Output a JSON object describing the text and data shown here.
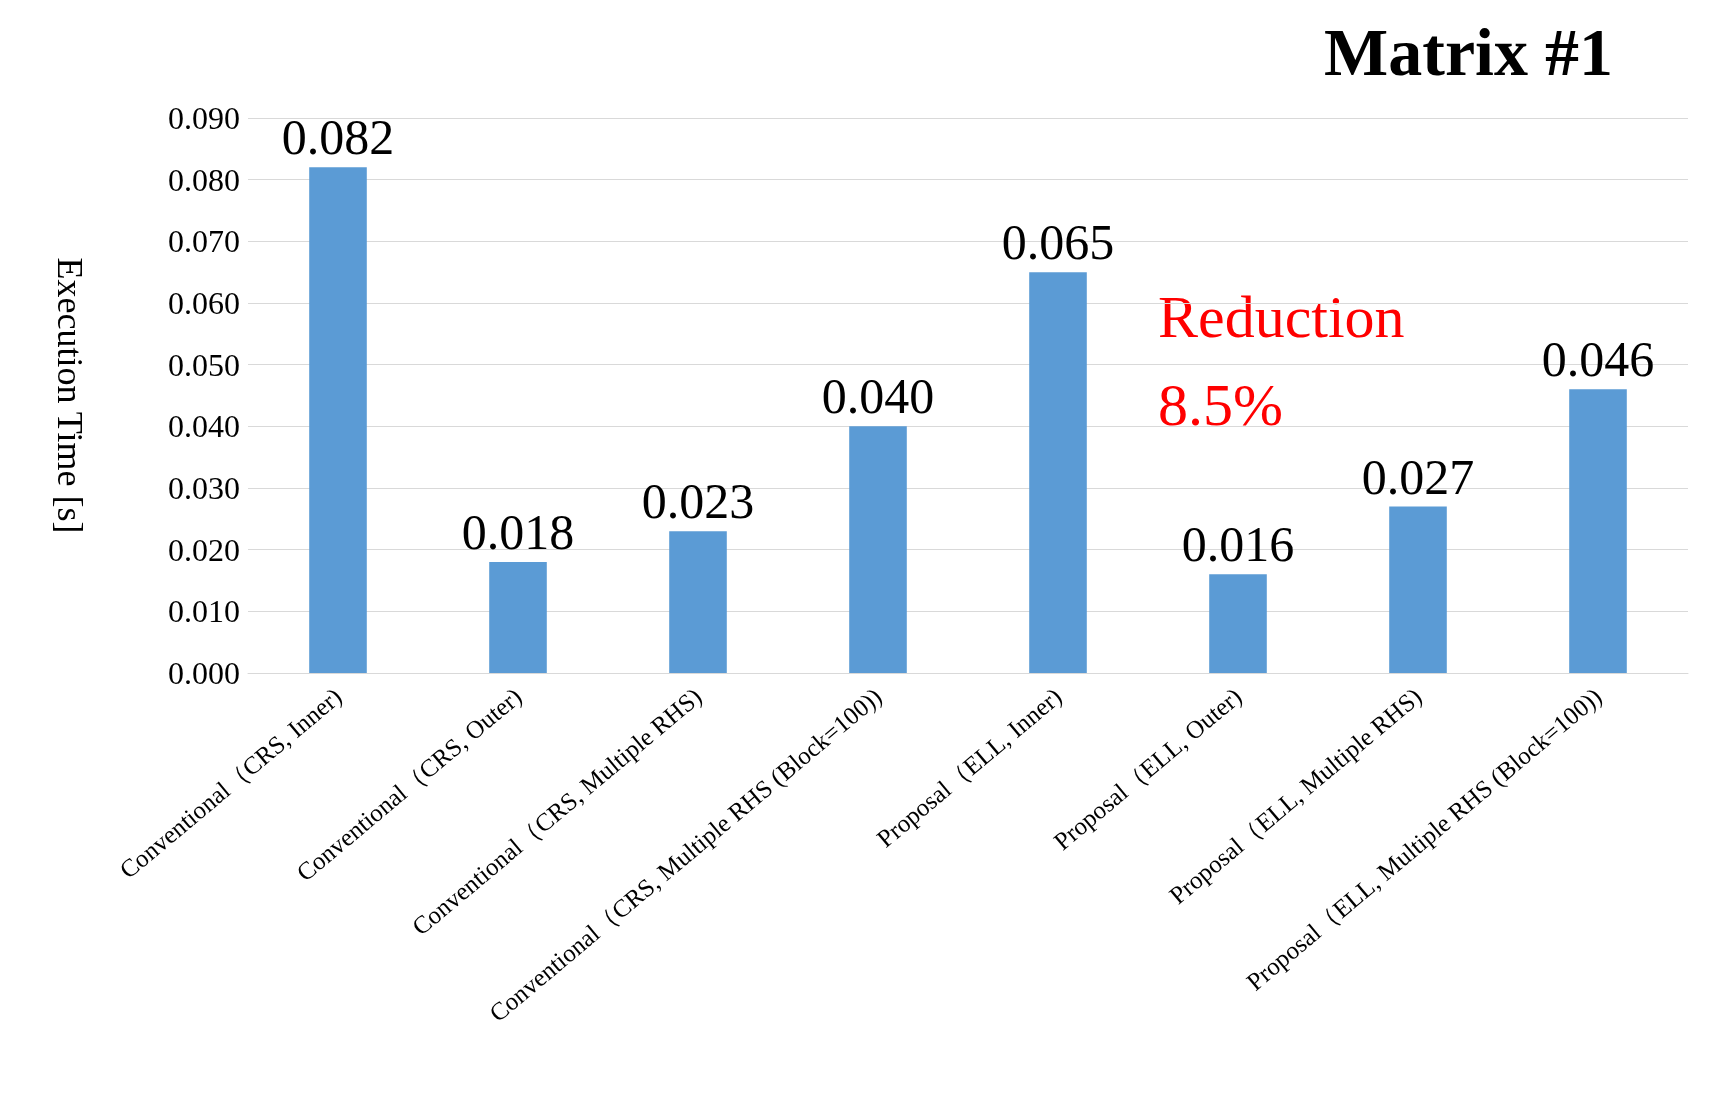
{
  "chart_data": {
    "type": "bar",
    "title": "Matrix #1",
    "ylabel": "Execution Time [s]",
    "categories": [
      "Conventional（CRS, Inner)",
      "Conventional（CRS, Outer)",
      "Conventional（CRS,\nMultiple RHS)",
      "Conventional（CRS,\nMultiple RHS (Block=100))",
      "Proposal（ELL, Inner)",
      "Proposal（ELL, Outer)",
      "Proposal（ELL,\nMultiple RHS)",
      "Proposal（ELL,\nMultiple RHS (Block=100))"
    ],
    "values": [
      0.082,
      0.018,
      0.023,
      0.04,
      0.065,
      0.016,
      0.027,
      0.046
    ],
    "value_labels": [
      "0.082",
      "0.018",
      "0.023",
      "0.040",
      "0.065",
      "0.016",
      "0.027",
      "0.046"
    ],
    "color": "#5b9bd5",
    "ylim": [
      0,
      0.09
    ],
    "yticks": [
      {
        "value": 0,
        "label": "0.000"
      },
      {
        "value": 0.01,
        "label": "0.010"
      },
      {
        "value": 0.02,
        "label": "0.020"
      },
      {
        "value": 0.03,
        "label": "0.030"
      },
      {
        "value": 0.04,
        "label": "0.040"
      },
      {
        "value": 0.05,
        "label": "0.050"
      },
      {
        "value": 0.06,
        "label": "0.060"
      },
      {
        "value": 0.07,
        "label": "0.070"
      },
      {
        "value": 0.08,
        "label": "0.080"
      },
      {
        "value": 0.09,
        "label": "0.090"
      }
    ],
    "grid": true,
    "annotations": [
      "Reduction\n8.5%"
    ]
  }
}
